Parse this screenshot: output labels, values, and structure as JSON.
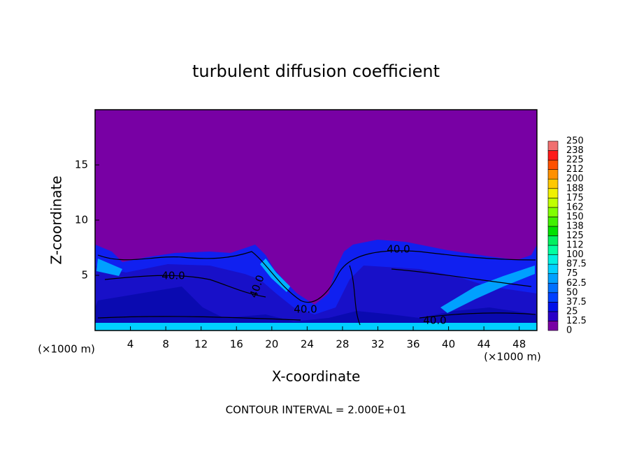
{
  "chart_data": {
    "type": "contour",
    "title": "turbulent diffusion coefficient",
    "xlabel": "X-coordinate",
    "ylabel": "Z-coordinate",
    "x_unit_labels": [
      "(×1000 m)",
      "(×1000 m)"
    ],
    "footnote": "CONTOUR INTERVAL = 2.000E+01",
    "xlim": [
      0,
      50
    ],
    "xticks": [
      4,
      8,
      12,
      16,
      20,
      24,
      28,
      32,
      36,
      40,
      44,
      48
    ],
    "ylim": [
      0,
      20
    ],
    "yticks": [
      5,
      10,
      15
    ],
    "contour_labels": [
      "40.0",
      "40.0",
      "40.0",
      "40.0",
      "40.0"
    ],
    "colorbar": {
      "ticks": [
        0,
        12.5,
        25,
        37.5,
        50,
        62.5,
        75,
        87.5,
        100,
        {
          "value": 112.5,
          "label": "112"
        },
        125,
        {
          "value": 137.5,
          "label": "138"
        },
        150,
        {
          "value": 162.5,
          "label": "162"
        },
        175,
        {
          "value": 187.5,
          "label": "188"
        },
        200,
        {
          "value": 212.5,
          "label": "212"
        },
        225,
        {
          "value": 237.5,
          "label": "238"
        },
        250
      ],
      "colors": [
        "#7800a4",
        "#2a00c8",
        "#0010e8",
        "#0040ff",
        "#0070ff",
        "#00a0ff",
        "#00d0ff",
        "#00f0e0",
        "#00ffa0",
        "#00f060",
        "#00e000",
        "#40f000",
        "#80ff00",
        "#c0ff00",
        "#f0f000",
        "#ffc800",
        "#ff9000",
        "#ff5000",
        "#ff1a1a",
        "#f07070"
      ]
    }
  }
}
